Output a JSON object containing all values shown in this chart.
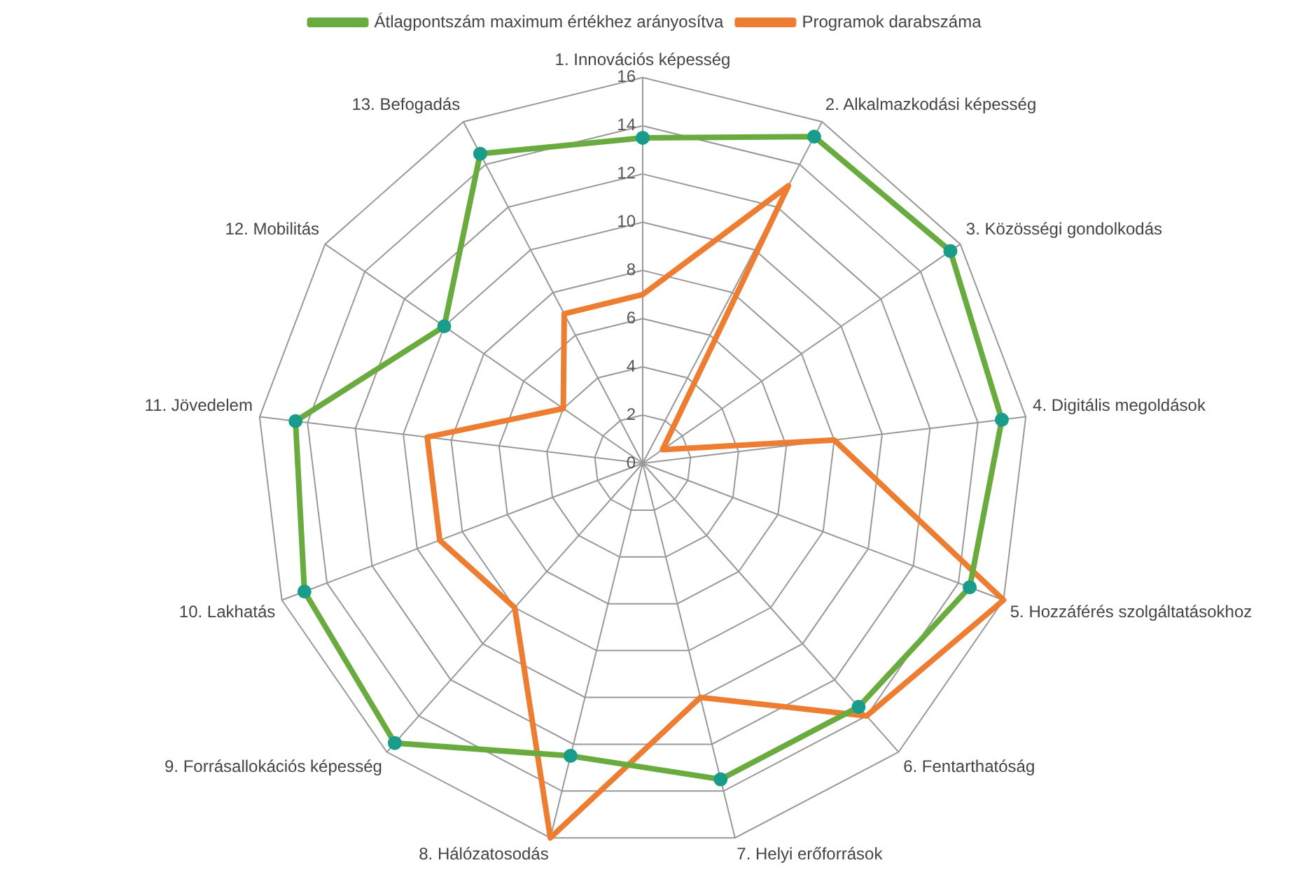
{
  "chart_data": {
    "type": "radar",
    "categories": [
      "1. Innovációs képesség",
      "2. Alkalmazkodási képesség",
      "3. Közösségi gondolkodás",
      "4. Digitális megoldások",
      "5. Hozzáférés szolgáltatásokhoz",
      "6. Fentarthatóság",
      "7. Helyi erőforrások",
      "8. Hálózatosodás",
      "9. Forrásallokációs képesség",
      "10. Lakhatás",
      "11. Jövedelem",
      "12. Mobilitás",
      "13. Befogadás"
    ],
    "series": [
      {
        "name": "Átlagpontszám maximum értékhez arányosítva",
        "color": "#6aab3f",
        "marker": "circle",
        "values": [
          13.5,
          15.3,
          15.5,
          15,
          14.5,
          13.5,
          13.5,
          12.5,
          15.5,
          15,
          14.5,
          10,
          14.5
        ]
      },
      {
        "name": "Programok darabszáma",
        "color": "#ed7d31",
        "marker": "none",
        "values": [
          7,
          13,
          1,
          8,
          16,
          14,
          10,
          16,
          8,
          9,
          9,
          4,
          7
        ]
      }
    ],
    "ylim": [
      0,
      16
    ],
    "yticks": [
      0,
      2,
      4,
      6,
      8,
      10,
      12,
      14,
      16
    ],
    "grid": true,
    "legend": "top"
  }
}
